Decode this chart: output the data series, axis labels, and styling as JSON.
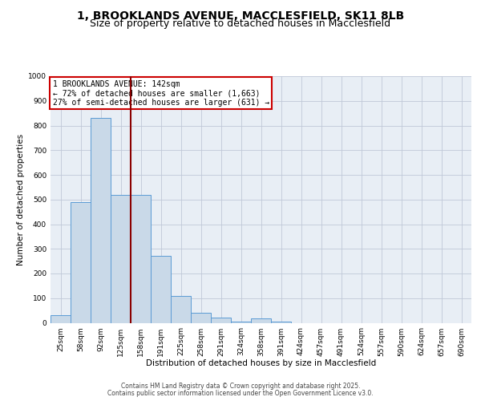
{
  "title_line1": "1, BROOKLANDS AVENUE, MACCLESFIELD, SK11 8LB",
  "title_line2": "Size of property relative to detached houses in Macclesfield",
  "xlabel": "Distribution of detached houses by size in Macclesfield",
  "ylabel": "Number of detached properties",
  "categories": [
    "25sqm",
    "58sqm",
    "92sqm",
    "125sqm",
    "158sqm",
    "191sqm",
    "225sqm",
    "258sqm",
    "291sqm",
    "324sqm",
    "358sqm",
    "391sqm",
    "424sqm",
    "457sqm",
    "491sqm",
    "524sqm",
    "557sqm",
    "590sqm",
    "624sqm",
    "657sqm",
    "690sqm"
  ],
  "values": [
    30,
    490,
    830,
    520,
    520,
    270,
    108,
    40,
    20,
    5,
    17,
    5,
    0,
    0,
    0,
    0,
    0,
    0,
    0,
    0,
    0
  ],
  "bar_color": "#c9d9e8",
  "bar_edge_color": "#5b9bd5",
  "grid_color": "#c0c8d8",
  "background_color": "#e8eef5",
  "vline_x": 3.5,
  "vline_color": "#8b0000",
  "annotation_text": "1 BROOKLANDS AVENUE: 142sqm\n← 72% of detached houses are smaller (1,663)\n27% of semi-detached houses are larger (631) →",
  "annotation_box_edge": "#cc0000",
  "annotation_box_face": "#ffffff",
  "ylim": [
    0,
    1000
  ],
  "yticks": [
    0,
    100,
    200,
    300,
    400,
    500,
    600,
    700,
    800,
    900,
    1000
  ],
  "footer_line1": "Contains HM Land Registry data © Crown copyright and database right 2025.",
  "footer_line2": "Contains public sector information licensed under the Open Government Licence v3.0.",
  "title_fontsize": 10,
  "subtitle_fontsize": 9,
  "axis_label_fontsize": 7.5,
  "tick_fontsize": 6.5,
  "annotation_fontsize": 7,
  "footer_fontsize": 5.5
}
